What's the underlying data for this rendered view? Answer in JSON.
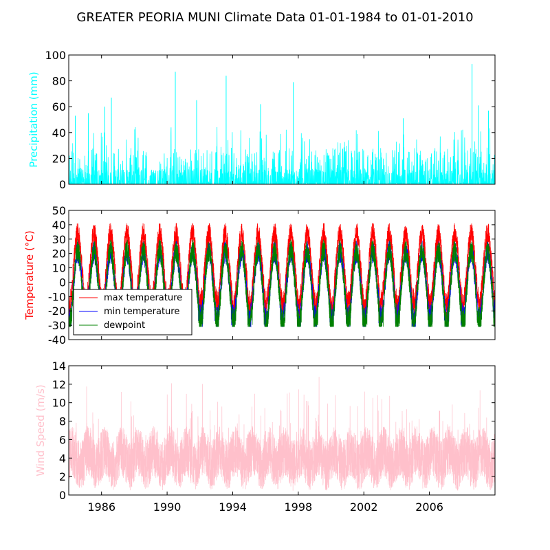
{
  "title": "GREATER PEORIA MUNI Climate Data 01-01-1984 to 01-01-2010",
  "colors": {
    "precipitation": "#00ffff",
    "max_temperature": "#ff0000",
    "min_temperature": "#0000ff",
    "dewpoint": "#008000",
    "wind_speed": "#ffc0cb"
  },
  "chart_data": [
    {
      "type": "line",
      "ylabel": "Precipitation (mm)",
      "xlim": [
        1984.0,
        2010.0
      ],
      "ylim": [
        0,
        100
      ],
      "yticks": [
        0,
        20,
        40,
        60,
        80,
        100
      ],
      "xticks": [
        1986,
        1990,
        1994,
        1998,
        2002,
        2006
      ],
      "grid": false,
      "series": [
        {
          "color": "#00ffff",
          "peaks": [
            {
              "x": 1984.4,
              "y": 53
            },
            {
              "x": 1985.2,
              "y": 55
            },
            {
              "x": 1986.2,
              "y": 60
            },
            {
              "x": 1986.6,
              "y": 67
            },
            {
              "x": 1990.5,
              "y": 87
            },
            {
              "x": 1991.8,
              "y": 65
            },
            {
              "x": 1993.6,
              "y": 84
            },
            {
              "x": 1995.7,
              "y": 62
            },
            {
              "x": 1997.7,
              "y": 79
            },
            {
              "x": 2004.4,
              "y": 51
            },
            {
              "x": 2008.6,
              "y": 93
            },
            {
              "x": 2009.0,
              "y": 61
            },
            {
              "x": 2009.6,
              "y": 57
            }
          ]
        }
      ]
    },
    {
      "type": "line",
      "ylabel": "Temperature (°C)",
      "xlim": [
        1984.0,
        2010.0
      ],
      "ylim": [
        -40,
        50
      ],
      "yticks": [
        -40,
        -30,
        -20,
        -10,
        0,
        10,
        20,
        30,
        40,
        50
      ],
      "xticks": [
        1986,
        1990,
        1994,
        1998,
        2002,
        2006
      ],
      "grid": false,
      "legend": "lower-left",
      "series": [
        {
          "name": "max temperature",
          "color": "#ff0000",
          "summer_high": 34,
          "winter_low": -12,
          "extreme_high": 40
        },
        {
          "name": "min temperature",
          "color": "#0000ff",
          "summer_high": 21,
          "winter_low": -22,
          "extreme_low": -29
        },
        {
          "name": "dewpoint",
          "color": "#008000",
          "summer_high": 22,
          "winter_low": -25,
          "extreme_low": -31
        }
      ]
    },
    {
      "type": "line",
      "ylabel": "Wind Speed (m/s)",
      "xlim": [
        1984.0,
        2010.0
      ],
      "ylim": [
        0,
        14
      ],
      "yticks": [
        0,
        2,
        4,
        6,
        8,
        10,
        12,
        14
      ],
      "xticks": [
        1986,
        1990,
        1994,
        1998,
        2002,
        2006
      ],
      "grid": false,
      "series": [
        {
          "color": "#ffc0cb",
          "typical_range": [
            1,
            8
          ],
          "peak": 12.8,
          "mean": 4
        }
      ]
    }
  ]
}
